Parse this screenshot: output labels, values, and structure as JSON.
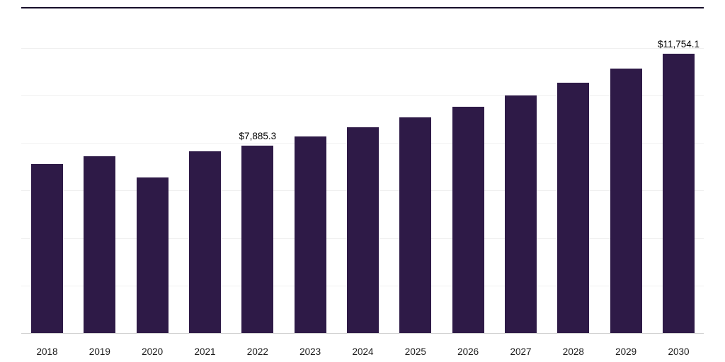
{
  "chart_data": {
    "type": "bar",
    "title": "",
    "xlabel": "",
    "ylabel": "",
    "categories": [
      "2018",
      "2019",
      "2020",
      "2021",
      "2022",
      "2023",
      "2024",
      "2025",
      "2026",
      "2027",
      "2028",
      "2029",
      "2030"
    ],
    "values": [
      7100,
      7450,
      6550,
      7650,
      7885.3,
      8280,
      8650,
      9070,
      9510,
      9990,
      10550,
      11130,
      11754.1
    ],
    "data_labels": {
      "2022": "$7,885.3",
      "2030": "$11,754.1"
    },
    "ylim": [
      0,
      12000
    ],
    "grid_step": 2000,
    "grid": true,
    "legend": "none",
    "bar_color": "#2e1a47",
    "gridline_color": "#f0f0f0",
    "axis_line_color": "#cfcfcf",
    "top_border_color": "#160e29"
  }
}
